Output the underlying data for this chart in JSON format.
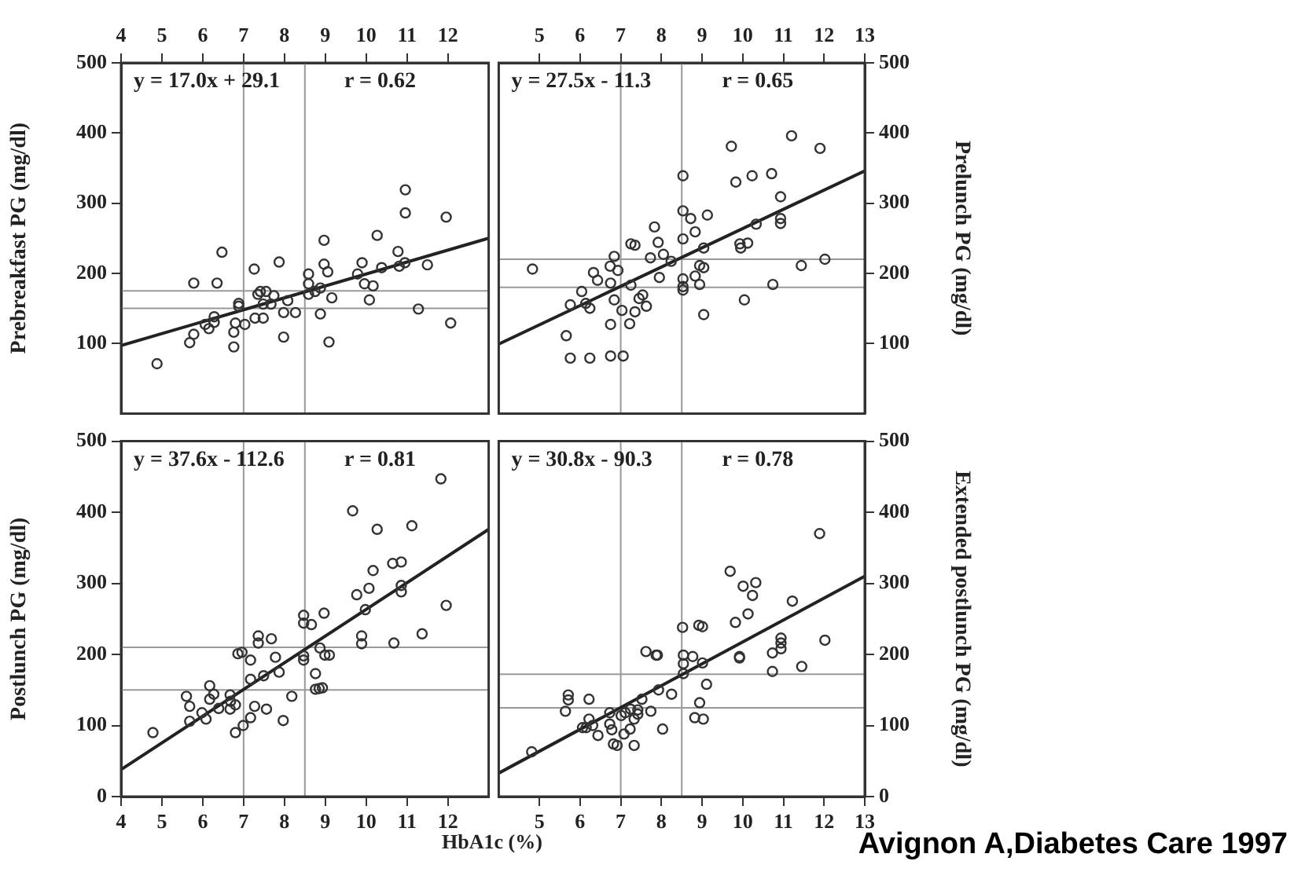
{
  "chart_data": [
    {
      "type": "scatter",
      "ylabel": "Prebreakfast PG (mg/dl)",
      "annotations": [
        "y = 17.0x + 29.1",
        "r = 0.62"
      ],
      "grid": false,
      "legend": false,
      "xlim": [
        4,
        13
      ],
      "xticks": [
        4,
        5,
        6,
        7,
        8,
        9,
        10,
        11,
        12
      ],
      "ylim": [
        0,
        500
      ],
      "yticks": [
        100,
        200,
        300,
        400,
        500
      ],
      "ref_lines": [
        {
          "axis": "x",
          "value": 7,
          "color": "#999999"
        },
        {
          "axis": "x",
          "value": 8.5,
          "color": "#999999"
        },
        {
          "axis": "y",
          "value": 175,
          "color": "#999999"
        },
        {
          "axis": "y",
          "value": 150,
          "color": "#999999"
        }
      ],
      "series": [
        {
          "type": "scatter",
          "marker": "circle",
          "color": "#333333",
          "x": [
            4.88,
            5.68,
            5.78,
            5.78,
            6.35,
            6.47,
            6.06,
            6.15,
            6.28,
            6.28,
            6.76,
            6.76,
            6.8,
            6.88,
            6.88,
            7.03,
            7.28,
            7.26,
            7.48,
            7.35,
            7.41,
            7.55,
            7.48,
            7.67,
            7.74,
            7.87,
            7.98,
            7.98,
            8.08,
            8.27,
            8.59,
            8.59,
            8.59,
            8.88,
            8.75,
            8.88,
            8.97,
            8.97,
            9.06,
            9.09,
            9.16,
            9.79,
            9.9,
            9.96,
            10.08,
            10.17,
            10.27,
            10.38,
            10.78,
            10.81,
            10.95,
            10.96,
            10.96,
            11.28,
            11.5,
            11.96,
            12.07
          ],
          "values": [
            71,
            101,
            113,
            186,
            186,
            230,
            127,
            121,
            130,
            138,
            95,
            116,
            129,
            153,
            157,
            127,
            136,
            206,
            136,
            170,
            174,
            174,
            156,
            156,
            168,
            216,
            109,
            144,
            161,
            144,
            199,
            185,
            170,
            179,
            174,
            142,
            247,
            213,
            202,
            102,
            165,
            199,
            215,
            185,
            162,
            182,
            254,
            208,
            231,
            210,
            215,
            319,
            286,
            149,
            212,
            280,
            129
          ]
        },
        {
          "type": "line",
          "marker": "none",
          "color": "#222222",
          "x": [
            4,
            13
          ],
          "values": [
            97,
            250
          ]
        }
      ]
    },
    {
      "type": "scatter",
      "y2label": "Prelunch PG (mg/dl)",
      "annotations": [
        "y = 27.5x - 11.3",
        "r = 0.65"
      ],
      "grid": false,
      "legend": false,
      "xlim": [
        4,
        13
      ],
      "xticks": [
        5,
        6,
        7,
        8,
        9,
        10,
        11,
        12,
        13
      ],
      "y2lim": [
        0,
        500
      ],
      "y2ticks": [
        100,
        200,
        300,
        400,
        500
      ],
      "ref_lines": [
        {
          "axis": "x",
          "value": 7,
          "color": "#999999"
        },
        {
          "axis": "x",
          "value": 8.5,
          "color": "#999999"
        },
        {
          "axis": "y2",
          "value": 220,
          "color": "#999999"
        },
        {
          "axis": "y2",
          "value": 180,
          "color": "#999999"
        }
      ],
      "series": [
        {
          "type": "scatter",
          "marker": "circle",
          "axis": "y2",
          "color": "#333333",
          "x": [
            4.83,
            5.66,
            5.76,
            5.76,
            6.04,
            6.14,
            6.24,
            6.24,
            6.33,
            6.43,
            6.74,
            6.84,
            6.93,
            6.75,
            6.84,
            6.75,
            6.75,
            7.06,
            7.03,
            7.22,
            7.25,
            7.25,
            7.35,
            7.35,
            7.45,
            7.54,
            7.63,
            7.83,
            7.92,
            7.95,
            7.73,
            8.05,
            8.24,
            8.53,
            8.53,
            8.53,
            8.53,
            8.53,
            8.53,
            8.72,
            8.83,
            8.83,
            8.94,
            8.94,
            9.04,
            9.04,
            9.13,
            9.04,
            9.72,
            9.83,
            9.93,
            9.95,
            10.12,
            10.04,
            10.23,
            10.33,
            10.71,
            10.74,
            10.93,
            10.93,
            10.93,
            11.2,
            11.44,
            11.9,
            12.02
          ],
          "values": [
            206,
            111,
            79,
            155,
            174,
            157,
            150,
            79,
            201,
            190,
            210,
            224,
            204,
            186,
            162,
            127,
            82,
            82,
            147,
            128,
            183,
            242,
            240,
            145,
            164,
            169,
            153,
            266,
            244,
            194,
            222,
            227,
            217,
            339,
            289,
            249,
            192,
            181,
            176,
            278,
            259,
            196,
            184,
            211,
            208,
            236,
            283,
            141,
            381,
            330,
            242,
            236,
            243,
            162,
            339,
            270,
            342,
            184,
            309,
            278,
            271,
            396,
            211,
            378,
            220
          ]
        },
        {
          "type": "line",
          "marker": "none",
          "axis": "y2",
          "color": "#222222",
          "x": [
            4,
            13
          ],
          "values": [
            99,
            346
          ]
        }
      ]
    },
    {
      "type": "scatter",
      "ylabel": "Postlunch PG (mg/dl)",
      "xlabel": "HbA1c (%)",
      "annotations": [
        "y = 37.6x - 112.6",
        "r = 0.81"
      ],
      "grid": false,
      "legend": false,
      "xlim": [
        4,
        13
      ],
      "xticks": [
        4,
        5,
        6,
        7,
        8,
        9,
        10,
        11,
        12
      ],
      "ylim": [
        0,
        500
      ],
      "yticks": [
        0,
        100,
        200,
        300,
        400,
        500
      ],
      "ref_lines": [
        {
          "axis": "x",
          "value": 7,
          "color": "#999999"
        },
        {
          "axis": "x",
          "value": 8.5,
          "color": "#999999"
        },
        {
          "axis": "y",
          "value": 210,
          "color": "#999999"
        },
        {
          "axis": "y",
          "value": 150,
          "color": "#999999"
        }
      ],
      "series": [
        {
          "type": "scatter",
          "marker": "circle",
          "color": "#333333",
          "x": [
            4.78,
            5.6,
            5.68,
            5.68,
            5.98,
            6.08,
            6.17,
            6.17,
            6.27,
            6.39,
            6.67,
            6.67,
            6.68,
            6.8,
            6.8,
            6.86,
            6.96,
            6.99,
            7.17,
            7.17,
            7.17,
            7.27,
            7.36,
            7.36,
            7.49,
            7.56,
            7.68,
            7.78,
            7.87,
            7.97,
            8.18,
            8.47,
            8.47,
            8.47,
            8.47,
            8.66,
            8.76,
            8.76,
            8.85,
            8.87,
            8.93,
            8.97,
            8.99,
            9.1,
            9.67,
            9.77,
            9.89,
            9.89,
            9.98,
            10.07,
            10.17,
            10.27,
            10.65,
            10.68,
            10.86,
            10.86,
            10.86,
            11.12,
            11.37,
            11.83,
            11.96
          ],
          "values": [
            90,
            141,
            127,
            106,
            118,
            109,
            156,
            137,
            144,
            124,
            143,
            123,
            134,
            129,
            90,
            201,
            203,
            100,
            111,
            192,
            165,
            127,
            226,
            216,
            170,
            123,
            222,
            196,
            175,
            107,
            141,
            255,
            244,
            198,
            192,
            242,
            173,
            151,
            152,
            209,
            153,
            258,
            199,
            199,
            402,
            284,
            226,
            215,
            263,
            293,
            318,
            376,
            328,
            216,
            330,
            297,
            288,
            381,
            229,
            447,
            269
          ]
        },
        {
          "type": "line",
          "marker": "none",
          "color": "#222222",
          "x": [
            4,
            13
          ],
          "values": [
            38,
            376
          ]
        }
      ]
    },
    {
      "type": "scatter",
      "y2label": "Extended postlunch PG (mg/dl)",
      "annotations": [
        "y = 30.8x - 90.3",
        "r = 0.78",
        "Avignon A,Diabetes Care 1997"
      ],
      "grid": false,
      "legend": false,
      "xlim": [
        4,
        13
      ],
      "xticks": [
        5,
        6,
        7,
        8,
        9,
        10,
        11,
        12,
        13
      ],
      "y2lim": [
        0,
        500
      ],
      "y2ticks": [
        0,
        100,
        200,
        300,
        400,
        500
      ],
      "ref_lines": [
        {
          "axis": "x",
          "value": 7,
          "color": "#999999"
        },
        {
          "axis": "x",
          "value": 8.5,
          "color": "#999999"
        },
        {
          "axis": "y2",
          "value": 172,
          "color": "#999999"
        },
        {
          "axis": "y2",
          "value": 125,
          "color": "#999999"
        }
      ],
      "series": [
        {
          "type": "scatter",
          "marker": "circle",
          "axis": "y2",
          "color": "#333333",
          "x": [
            4.81,
            5.64,
            5.71,
            5.71,
            6.06,
            6.15,
            6.22,
            6.22,
            6.31,
            6.44,
            6.73,
            6.73,
            6.78,
            6.82,
            6.91,
            7.01,
            7.08,
            7.11,
            7.23,
            7.24,
            7.33,
            7.33,
            7.42,
            7.42,
            7.52,
            7.62,
            7.74,
            7.87,
            7.9,
            7.93,
            8.03,
            8.25,
            8.52,
            8.54,
            8.54,
            8.54,
            8.77,
            8.82,
            8.92,
            8.94,
            9.01,
            9.01,
            9.03,
            9.11,
            9.69,
            9.82,
            9.92,
            9.92,
            10.01,
            10.13,
            10.24,
            10.32,
            10.73,
            10.73,
            10.94,
            10.94,
            10.94,
            11.22,
            11.45,
            11.89,
            12.02
          ],
          "values": [
            63,
            120,
            143,
            136,
            97,
            97,
            109,
            137,
            100,
            86,
            118,
            102,
            94,
            74,
            72,
            114,
            88,
            118,
            95,
            123,
            109,
            72,
            116,
            122,
            137,
            204,
            120,
            199,
            199,
            150,
            95,
            144,
            238,
            199,
            187,
            173,
            197,
            111,
            241,
            132,
            239,
            188,
            109,
            158,
            317,
            245,
            197,
            195,
            296,
            257,
            283,
            301,
            202,
            176,
            223,
            216,
            208,
            275,
            183,
            370,
            220
          ]
        },
        {
          "type": "line",
          "marker": "none",
          "axis": "y2",
          "color": "#222222",
          "x": [
            4,
            13
          ],
          "values": [
            33,
            310
          ]
        }
      ]
    }
  ]
}
